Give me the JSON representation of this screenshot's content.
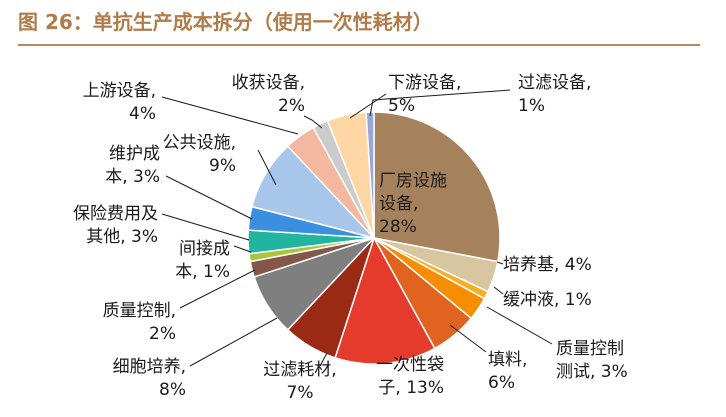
{
  "title": "图 26：单抗生产成本拆分（使用一次性耗材）",
  "chart_data": {
    "type": "pie",
    "title": "图 26：单抗生产成本拆分（使用一次性耗材）",
    "slices": [
      {
        "label": "厂房设施设备",
        "value": 28,
        "color": "#a6825c",
        "text": [
          "厂房设施",
          "设备,",
          "28%"
        ]
      },
      {
        "label": "培养基",
        "value": 4,
        "color": "#d8c6a0",
        "text": [
          "培养基, 4%"
        ]
      },
      {
        "label": "缓冲液",
        "value": 1,
        "color": "#f7ae22",
        "text": [
          "缓冲液, 1%"
        ]
      },
      {
        "label": "质量控制测试",
        "value": 3,
        "color": "#f78d00",
        "text": [
          "质量控制",
          "测试, 3%"
        ]
      },
      {
        "label": "填料",
        "value": 6,
        "color": "#e0631f",
        "text": [
          "填料,",
          "6%"
        ]
      },
      {
        "label": "一次性袋子",
        "value": 13,
        "color": "#e53b2c",
        "text": [
          "一次性袋",
          "子, 13%"
        ]
      },
      {
        "label": "过滤耗材",
        "value": 7,
        "color": "#9b2a14",
        "text": [
          "过滤耗材,",
          "7%"
        ]
      },
      {
        "label": "细胞培养",
        "value": 8,
        "color": "#7f7f7f",
        "text": [
          "细胞培养,",
          "8%"
        ]
      },
      {
        "label": "质量控制",
        "value": 2,
        "color": "#84574a",
        "text": [
          "质量控制,",
          "2%"
        ]
      },
      {
        "label": "间接成本",
        "value": 1,
        "color": "#a8c63a",
        "text": [
          "间接成",
          "本, 1%"
        ]
      },
      {
        "label": "保险费用及其他",
        "value": 3,
        "color": "#21b59f",
        "text": [
          "保险费用及",
          "其他, 3%"
        ]
      },
      {
        "label": "维护成本",
        "value": 3,
        "color": "#3b8fe0",
        "text": [
          "维护成",
          "本, 3%"
        ]
      },
      {
        "label": "公共设施",
        "value": 9,
        "color": "#a7c6ea",
        "text": [
          "公共设施,",
          "9%"
        ]
      },
      {
        "label": "上游设备",
        "value": 4,
        "color": "#f4b79f",
        "text": [
          "上游设备,",
          "4%"
        ]
      },
      {
        "label": "收获设备",
        "value": 2,
        "color": "#cbcbcb",
        "text": [
          "收获设备,",
          "2%"
        ]
      },
      {
        "label": "下游设备",
        "value": 5,
        "color": "#fdd6a4",
        "text": [
          "下游设备,",
          "5%"
        ]
      },
      {
        "label": "过滤设备",
        "value": 1,
        "color": "#9aa7d6",
        "text": [
          "过滤设备,",
          "1%"
        ]
      }
    ]
  }
}
